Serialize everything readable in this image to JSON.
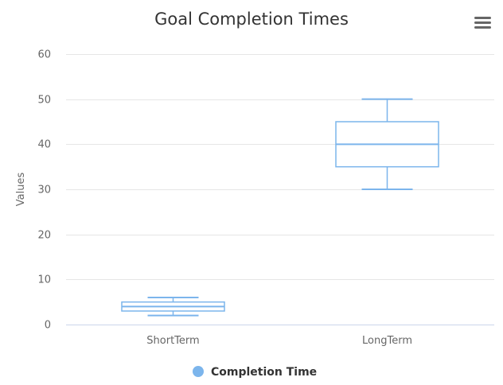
{
  "menu_icon": "hamburger-menu-icon",
  "colors": {
    "series": "#7cb5ec",
    "grid": "#e6e6e6",
    "axis": "#ccd6eb",
    "text": "#333333",
    "muted": "#666666"
  },
  "chart_data": {
    "type": "boxplot",
    "title": "Goal Completion Times",
    "xlabel": "",
    "ylabel": "Values",
    "ylim": [
      0,
      60
    ],
    "yticks": [
      0,
      10,
      20,
      30,
      40,
      50,
      60
    ],
    "grid": true,
    "legend_position": "bottom-center",
    "categories": [
      "ShortTerm",
      "LongTerm"
    ],
    "series": [
      {
        "name": "Completion Time",
        "color": "#7cb5ec",
        "boxes": [
          {
            "low": 2,
            "q1": 3,
            "median": 4,
            "q3": 5,
            "high": 6
          },
          {
            "low": 30,
            "q1": 35,
            "median": 40,
            "q3": 45,
            "high": 50
          }
        ]
      }
    ]
  }
}
